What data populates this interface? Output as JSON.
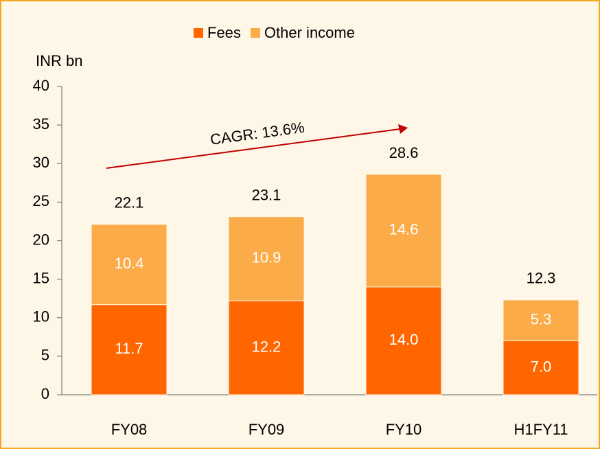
{
  "chart_data": {
    "type": "stacked_bar",
    "y_axis_label": "INR bn",
    "annotation": "CAGR: 13.6%",
    "categories": [
      "FY08",
      "FY09",
      "FY10",
      "H1FY11"
    ],
    "series": [
      {
        "name": "Fees",
        "color": "#ff6600",
        "values": [
          11.7,
          12.2,
          14.0,
          7.0
        ],
        "value_labels": [
          "11.7",
          "12.2",
          "14.0",
          "7.0"
        ]
      },
      {
        "name": "Other income",
        "color": "#fbab48",
        "values": [
          10.4,
          10.9,
          14.6,
          5.3
        ]
      }
    ],
    "totals": [
      22.1,
      23.1,
      28.6,
      12.3
    ],
    "ylim": [
      0,
      40
    ],
    "yticks": [
      0,
      5,
      10,
      15,
      20,
      25,
      30,
      35,
      40
    ],
    "legend": "top"
  }
}
